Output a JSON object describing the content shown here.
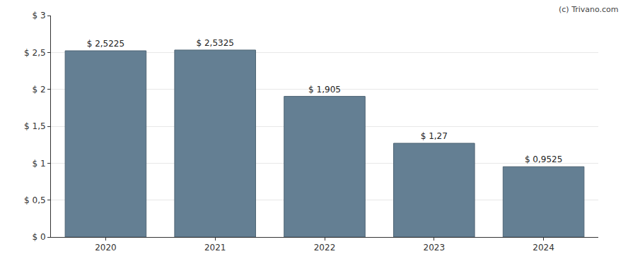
{
  "chart_data": {
    "type": "bar",
    "categories": [
      "2020",
      "2021",
      "2022",
      "2023",
      "2024"
    ],
    "values": [
      2.5225,
      2.5325,
      1.905,
      1.27,
      0.9525
    ],
    "value_labels": [
      "$ 2,5225",
      "$ 2,5325",
      "$ 1,905",
      "$ 1,27",
      "$ 0,9525"
    ],
    "data_labels": true,
    "color": "#647f93",
    "ylim": [
      0,
      3
    ],
    "yticks": [
      {
        "value": 0,
        "label": "$ 0"
      },
      {
        "value": 0.5,
        "label": "$ 0,5"
      },
      {
        "value": 1,
        "label": "$ 1"
      },
      {
        "value": 1.5,
        "label": "$ 1,5"
      },
      {
        "value": 2,
        "label": "$ 2"
      },
      {
        "value": 2.5,
        "label": "$ 2,5"
      },
      {
        "value": 3,
        "label": "$ 3"
      }
    ],
    "grid": true,
    "annotations": [
      "(c) Trivano.com"
    ]
  }
}
